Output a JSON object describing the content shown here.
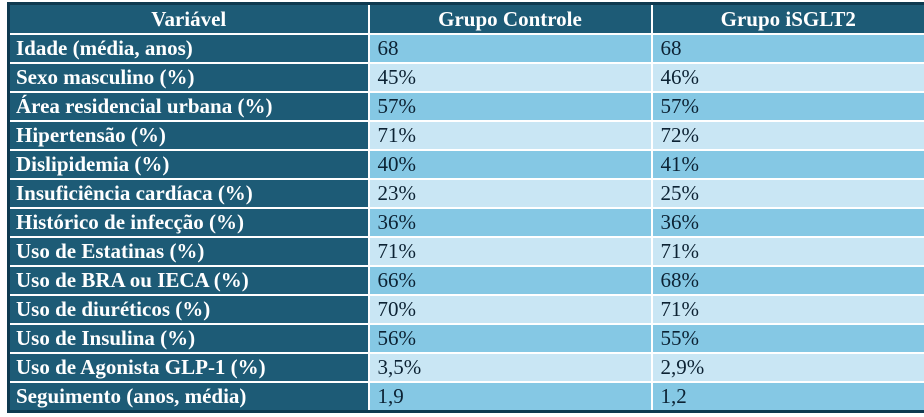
{
  "colors": {
    "header_bg": "#1D5B76",
    "band_medium": "#85C8E4",
    "band_light": "#C9E6F4",
    "outer_border": "#0F3A50",
    "grid_line": "#FFFFFF",
    "header_text": "#FFFFFF",
    "cell_text": "#0C2233"
  },
  "table": {
    "columns": [
      "Variável",
      "Grupo Controle",
      "Grupo iSGLT2"
    ],
    "rows": [
      {
        "variable": "Idade (média, anos)",
        "control": "68",
        "isglt2": "68"
      },
      {
        "variable": "Sexo masculino (%)",
        "control": "45%",
        "isglt2": "46%"
      },
      {
        "variable": "Área residencial urbana (%)",
        "control": "57%",
        "isglt2": "57%"
      },
      {
        "variable": "Hipertensão (%)",
        "control": "71%",
        "isglt2": "72%"
      },
      {
        "variable": "Dislipidemia (%)",
        "control": "40%",
        "isglt2": "41%"
      },
      {
        "variable": "Insuficiência cardíaca (%)",
        "control": "23%",
        "isglt2": "25%"
      },
      {
        "variable": "Histórico de infecção (%)",
        "control": "36%",
        "isglt2": "36%"
      },
      {
        "variable": "Uso de Estatinas (%)",
        "control": "71%",
        "isglt2": "71%"
      },
      {
        "variable": "Uso de BRA ou IECA (%)",
        "control": "66%",
        "isglt2": "68%"
      },
      {
        "variable": "Uso de diuréticos (%)",
        "control": "70%",
        "isglt2": "71%"
      },
      {
        "variable": "Uso de Insulina (%)",
        "control": "56%",
        "isglt2": "55%"
      },
      {
        "variable": "Uso de Agonista GLP-1 (%)",
        "control": "3,5%",
        "isglt2": "2,9%"
      },
      {
        "variable": "Seguimento (anos, média)",
        "control": "1,9",
        "isglt2": "1,2"
      }
    ]
  }
}
